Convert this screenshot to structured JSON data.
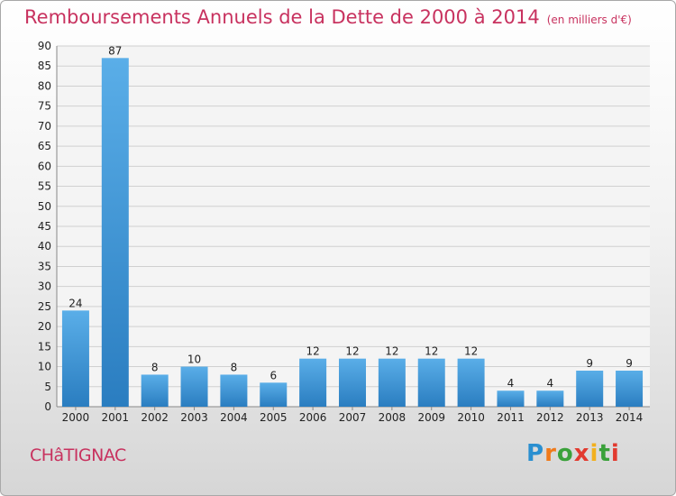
{
  "title": "Remboursements Annuels de la Dette de 2000 à 2014",
  "unit": "(en milliers d'€)",
  "commune": "CHâTIGNAC",
  "brand": {
    "letters": [
      "P",
      "r",
      "o",
      "x",
      "i",
      "t",
      "i"
    ],
    "colors": [
      "#2a8fd0",
      "#f07a1a",
      "#3aa13a",
      "#e23a2f",
      "#f2b01e",
      "#3aa13a",
      "#e23a2f"
    ]
  },
  "colors": {
    "bar_top": "#5aaee8",
    "bar_bottom": "#2a7dc0",
    "title": "#c8325f"
  },
  "chart_data": {
    "type": "bar",
    "categories": [
      "2000",
      "2001",
      "2002",
      "2003",
      "2004",
      "2005",
      "2006",
      "2007",
      "2008",
      "2009",
      "2010",
      "2011",
      "2012",
      "2013",
      "2014"
    ],
    "values": [
      24,
      87,
      8,
      10,
      8,
      6,
      12,
      12,
      12,
      12,
      12,
      4,
      4,
      9,
      9
    ],
    "ylim": [
      0,
      90
    ],
    "yticks": [
      0,
      5,
      10,
      15,
      20,
      25,
      30,
      35,
      40,
      45,
      50,
      55,
      60,
      65,
      70,
      75,
      80,
      85,
      90
    ],
    "grid": true
  }
}
